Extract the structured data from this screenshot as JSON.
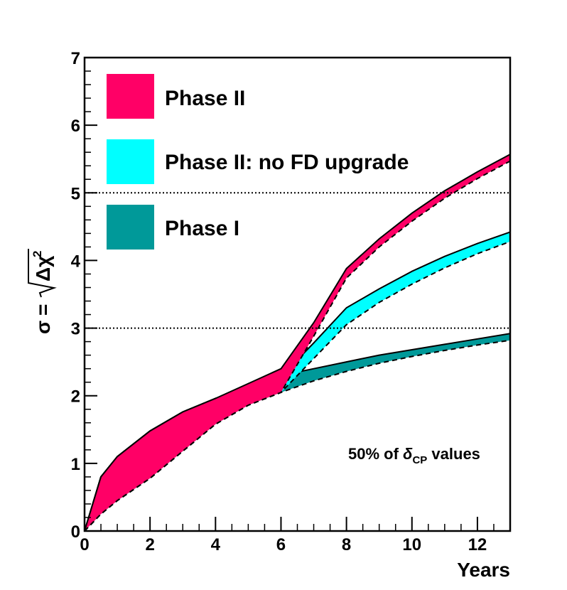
{
  "chart_data": {
    "type": "area",
    "title": "",
    "xlabel": "Years",
    "ylabel": {
      "sigma": "σ",
      "equals": "=",
      "delta": "Δχ",
      "exponent": "2"
    },
    "xlim": [
      0,
      13
    ],
    "ylim": [
      0,
      7
    ],
    "xticks": [
      0,
      2,
      4,
      6,
      8,
      10,
      12
    ],
    "yticks": [
      0,
      1,
      2,
      3,
      4,
      5,
      6,
      7
    ],
    "reference_lines": [
      3,
      5
    ],
    "annotation": {
      "prefix": "50% of ",
      "symbol": "δ",
      "subscript": "CP",
      "suffix": " values"
    },
    "legend_position": "top-left",
    "series": [
      {
        "name": "Phase II",
        "color": "#FF0066",
        "upper": {
          "x": [
            0,
            0.5,
            1,
            2,
            3,
            4,
            5,
            6,
            7,
            8,
            9,
            10,
            11,
            12,
            13
          ],
          "y": [
            0,
            0.8,
            1.1,
            1.48,
            1.76,
            1.96,
            2.18,
            2.4,
            3.08,
            3.88,
            4.32,
            4.7,
            5.03,
            5.31,
            5.57
          ]
        },
        "lower": {
          "x": [
            0,
            0.5,
            1,
            2,
            3,
            4,
            5,
            6,
            7,
            8,
            9,
            10,
            11,
            12,
            13
          ],
          "y": [
            0,
            0.25,
            0.45,
            0.78,
            1.18,
            1.58,
            1.86,
            2.05,
            2.88,
            3.74,
            4.2,
            4.58,
            4.92,
            5.21,
            5.47
          ]
        }
      },
      {
        "name": "Phase II: no FD upgrade",
        "color": "#00FFFF",
        "upper": {
          "x": [
            0,
            0.5,
            1,
            2,
            3,
            4,
            5,
            6,
            7,
            8,
            9,
            10,
            11,
            12,
            13
          ],
          "y": [
            0,
            0.8,
            1.1,
            1.48,
            1.76,
            1.96,
            2.12,
            2.28,
            2.78,
            3.3,
            3.58,
            3.84,
            4.06,
            4.25,
            4.42
          ]
        },
        "lower": {
          "x": [
            0,
            0.5,
            1,
            2,
            3,
            4,
            5,
            6,
            7,
            8,
            9,
            10,
            11,
            12,
            13
          ],
          "y": [
            0,
            0.25,
            0.45,
            0.78,
            1.18,
            1.58,
            1.86,
            2.05,
            2.55,
            3.05,
            3.38,
            3.65,
            3.89,
            4.1,
            4.28
          ]
        }
      },
      {
        "name": "Phase I",
        "color": "#009999",
        "upper": {
          "x": [
            0,
            0.5,
            1,
            2,
            3,
            4,
            5,
            6,
            6.5,
            7,
            8,
            9,
            10,
            11,
            12,
            13
          ],
          "y": [
            0,
            0.8,
            1.1,
            1.48,
            1.76,
            1.96,
            2.12,
            2.25,
            2.35,
            2.4,
            2.5,
            2.6,
            2.68,
            2.76,
            2.84,
            2.92
          ]
        },
        "lower": {
          "x": [
            0,
            0.5,
            1,
            2,
            3,
            4,
            5,
            6,
            7,
            8,
            9,
            10,
            11,
            12,
            13
          ],
          "y": [
            0,
            0.25,
            0.45,
            0.78,
            1.18,
            1.58,
            1.86,
            2.05,
            2.22,
            2.36,
            2.48,
            2.58,
            2.67,
            2.75,
            2.82
          ]
        }
      }
    ]
  }
}
